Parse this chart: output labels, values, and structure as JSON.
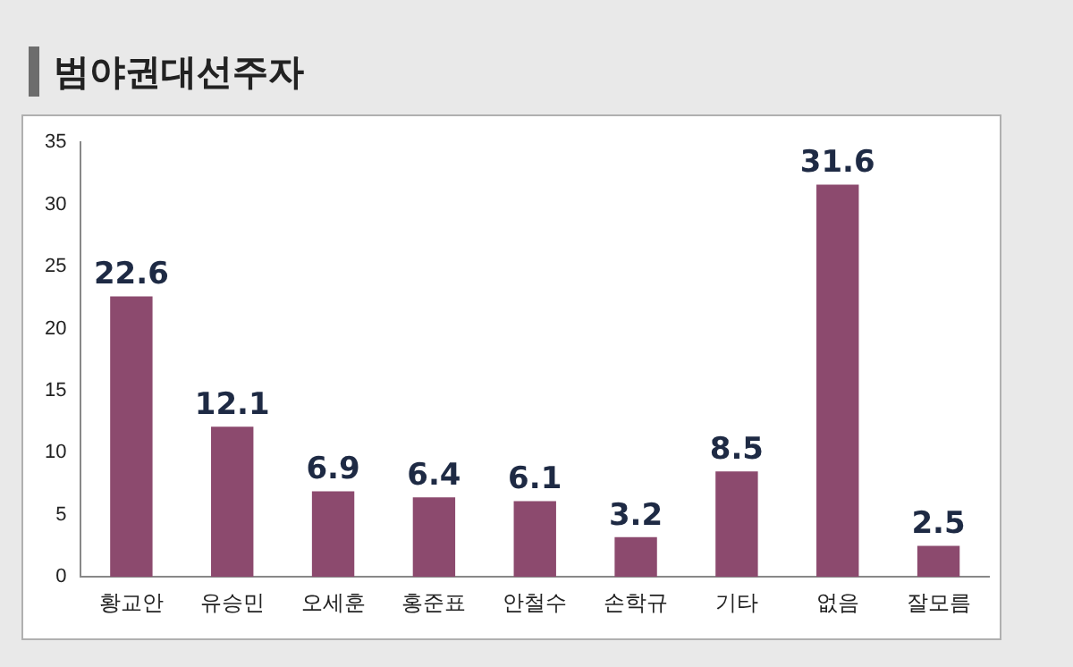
{
  "chart_data": {
    "type": "bar",
    "title": "범야권대선주자",
    "categories": [
      "황교안",
      "유승민",
      "오세훈",
      "홍준표",
      "안철수",
      "손학규",
      "기타",
      "없음",
      "잘모름"
    ],
    "values": [
      22.6,
      12.1,
      6.9,
      6.4,
      6.1,
      3.2,
      8.5,
      31.6,
      2.5
    ],
    "color": "#8c4a6e",
    "ylim": [
      0,
      35
    ],
    "yticks": [
      0,
      5,
      10,
      15,
      20,
      25,
      30,
      35
    ],
    "grid": false,
    "data_labels": true,
    "legend": false
  }
}
